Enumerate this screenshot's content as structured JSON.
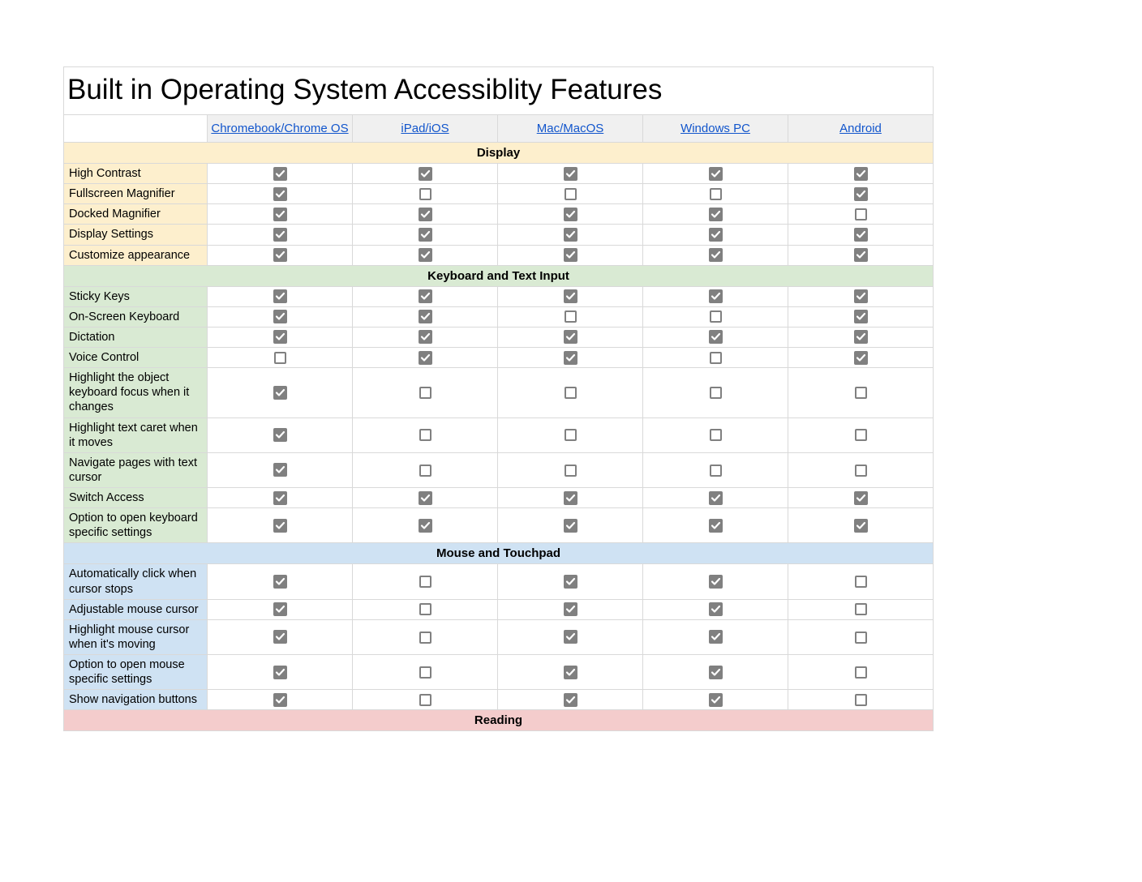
{
  "title": "Built in Operating System Accessiblity Features",
  "columns": [
    {
      "label": "Chromebook/Chrome OS",
      "key": "chrome"
    },
    {
      "label": "iPad/iOS",
      "key": "ios"
    },
    {
      "label": "Mac/MacOS",
      "key": "mac"
    },
    {
      "label": "Windows PC",
      "key": "win"
    },
    {
      "label": "Android",
      "key": "android"
    }
  ],
  "colors": {
    "link": "#1155cc",
    "header_bg": "#f0f0f0",
    "border": "#d9d9d9",
    "check_fill": "#808080",
    "section_label_colors": {
      "Display": "#fdefcd",
      "Keyboard and Text Input": "#d9ead3",
      "Mouse and Touchpad": "#cfe2f3",
      "Reading": "#f4cccc"
    },
    "section_header_colors": {
      "Display": "#fdefcd",
      "Keyboard and Text Input": "#d9ead3",
      "Mouse and Touchpad": "#cfe2f3",
      "Reading": "#f4cccc"
    }
  },
  "sections": [
    {
      "name": "Display",
      "rows": [
        {
          "label": "High Contrast",
          "chrome": true,
          "ios": true,
          "mac": true,
          "win": true,
          "android": true
        },
        {
          "label": "Fullscreen Magnifier",
          "chrome": true,
          "ios": false,
          "mac": false,
          "win": false,
          "android": true
        },
        {
          "label": "Docked Magnifier",
          "chrome": true,
          "ios": true,
          "mac": true,
          "win": true,
          "android": false
        },
        {
          "label": "Display Settings",
          "chrome": true,
          "ios": true,
          "mac": true,
          "win": true,
          "android": true
        },
        {
          "label": "Customize appearance",
          "chrome": true,
          "ios": true,
          "mac": true,
          "win": true,
          "android": true
        }
      ]
    },
    {
      "name": "Keyboard and Text Input",
      "rows": [
        {
          "label": "Sticky Keys",
          "chrome": true,
          "ios": true,
          "mac": true,
          "win": true,
          "android": true
        },
        {
          "label": "On-Screen Keyboard",
          "chrome": true,
          "ios": true,
          "mac": false,
          "win": false,
          "android": true
        },
        {
          "label": "Dictation",
          "chrome": true,
          "ios": true,
          "mac": true,
          "win": true,
          "android": true
        },
        {
          "label": "Voice Control",
          "chrome": false,
          "ios": true,
          "mac": true,
          "win": false,
          "android": true
        },
        {
          "label": "Highlight the object keyboard focus when it changes",
          "chrome": true,
          "ios": false,
          "mac": false,
          "win": false,
          "android": false
        },
        {
          "label": "Highlight text caret when it moves",
          "chrome": true,
          "ios": false,
          "mac": false,
          "win": false,
          "android": false
        },
        {
          "label": "Navigate pages with text cursor",
          "chrome": true,
          "ios": false,
          "mac": false,
          "win": false,
          "android": false
        },
        {
          "label": "Switch Access",
          "chrome": true,
          "ios": true,
          "mac": true,
          "win": true,
          "android": true
        },
        {
          "label": "Option to open keyboard specific settings",
          "chrome": true,
          "ios": true,
          "mac": true,
          "win": true,
          "android": true
        }
      ]
    },
    {
      "name": "Mouse and Touchpad",
      "rows": [
        {
          "label": "Automatically click when cursor stops",
          "chrome": true,
          "ios": false,
          "mac": true,
          "win": true,
          "android": false
        },
        {
          "label": "Adjustable mouse cursor",
          "chrome": true,
          "ios": false,
          "mac": true,
          "win": true,
          "android": false
        },
        {
          "label": "Highlight mouse cursor when it's moving",
          "chrome": true,
          "ios": false,
          "mac": true,
          "win": true,
          "android": false
        },
        {
          "label": "Option to open mouse specific settings",
          "chrome": true,
          "ios": false,
          "mac": true,
          "win": true,
          "android": false
        },
        {
          "label": "Show navigation buttons",
          "chrome": true,
          "ios": false,
          "mac": true,
          "win": true,
          "android": false
        }
      ]
    },
    {
      "name": "Reading",
      "rows": []
    }
  ]
}
